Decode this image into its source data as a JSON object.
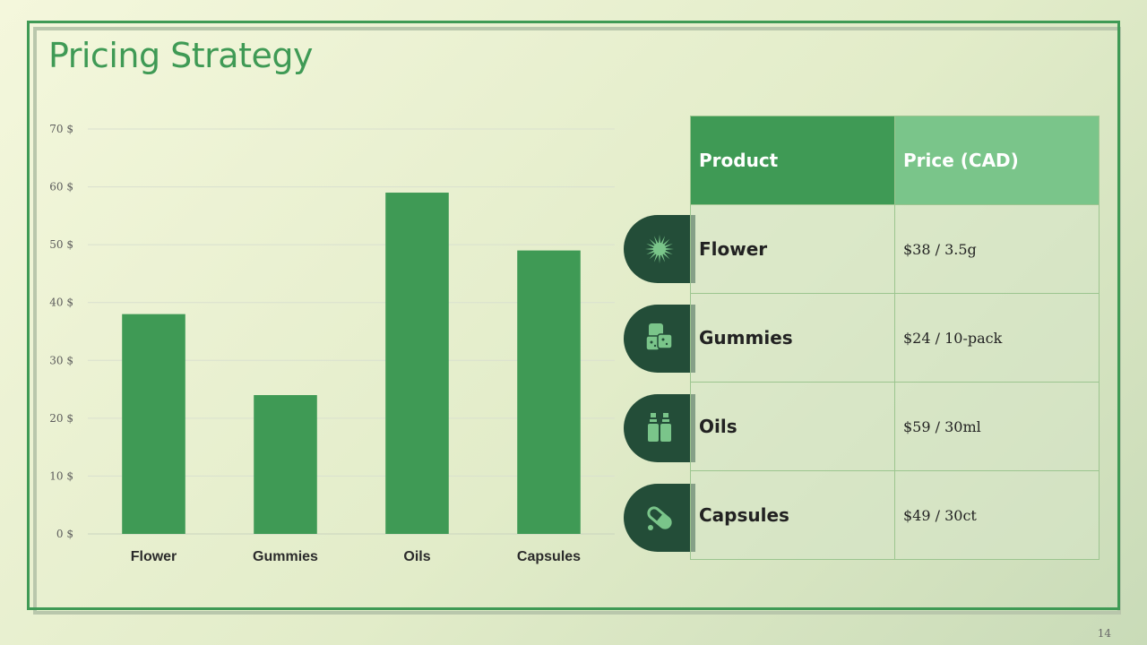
{
  "title": "Pricing Strategy",
  "page_number": "14",
  "colors": {
    "accent": "#3f9a55",
    "header_light": "#7ac58a",
    "icon_tab": "#234d38",
    "icon_fill": "#7ac58a"
  },
  "chart_data": {
    "type": "bar",
    "categories": [
      "Flower",
      "Gummies",
      "Oils",
      "Capsules"
    ],
    "values": [
      38,
      24,
      59,
      49
    ],
    "ylim": [
      0,
      70
    ],
    "yticks": [
      0,
      10,
      20,
      30,
      40,
      50,
      60,
      70
    ],
    "ytick_suffix": " $",
    "grid": true,
    "bar_color": "#3f9a55"
  },
  "table": {
    "headers": [
      "Product",
      "Price (CAD)"
    ],
    "rows": [
      {
        "product": "Flower",
        "price": "$38 / 3.5g",
        "icon": "flower-bud-icon"
      },
      {
        "product": "Gummies",
        "price": "$24 / 10-pack",
        "icon": "gummies-icon"
      },
      {
        "product": "Oils",
        "price": "$59 / 30ml",
        "icon": "oil-bottles-icon"
      },
      {
        "product": "Capsules",
        "price": "$49 / 30ct",
        "icon": "capsule-icon"
      }
    ]
  }
}
